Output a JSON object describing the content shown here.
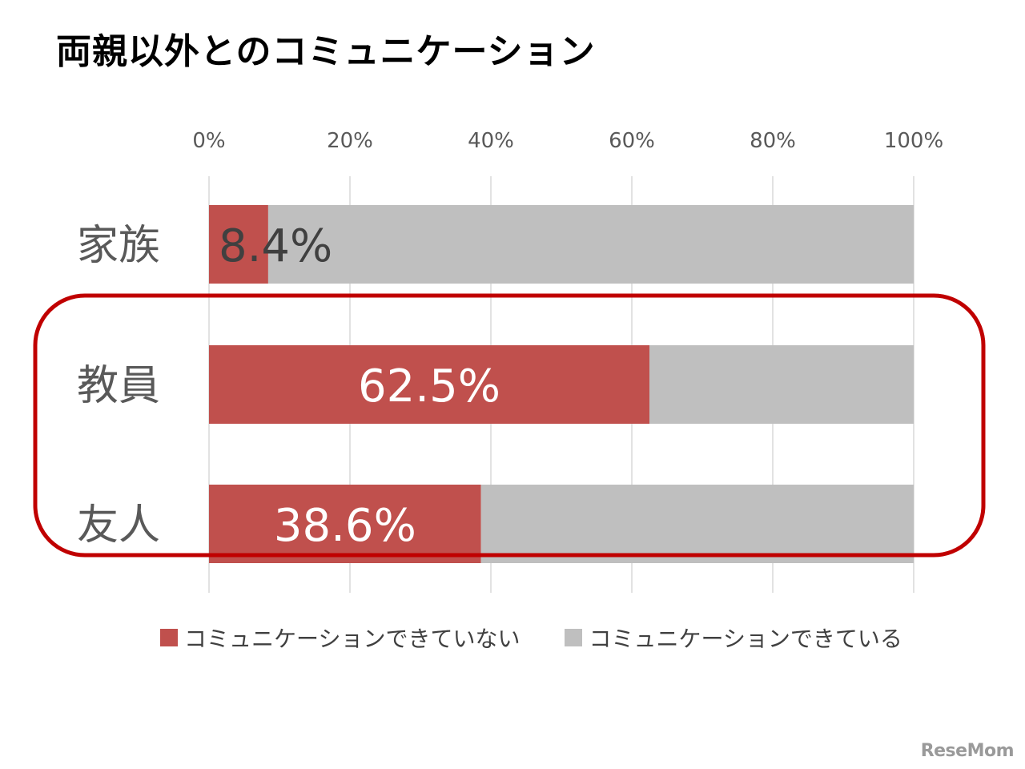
{
  "chart_data": {
    "type": "bar",
    "orientation": "horizontal",
    "stacked": true,
    "title": "両親以外とのコミュニケーション",
    "categories": [
      "家族",
      "教員",
      "友人"
    ],
    "series": [
      {
        "name": "コミュニケーションできていない",
        "values": [
          8.4,
          62.5,
          38.6
        ],
        "color": "#c0504d"
      },
      {
        "name": "コミュニケーションできている",
        "values": [
          91.6,
          37.5,
          61.4
        ],
        "color": "#bfbfbf"
      }
    ],
    "data_labels": [
      "8.4%",
      "62.5%",
      "38.6%"
    ],
    "xlim": [
      0,
      100
    ],
    "xticks": [
      "0%",
      "20%",
      "40%",
      "60%",
      "80%",
      "100%"
    ],
    "grid": true,
    "highlight": {
      "categories": [
        "教員",
        "友人"
      ],
      "color": "#c00000"
    },
    "legend_position": "bottom"
  },
  "logo_text": "ReseMom"
}
